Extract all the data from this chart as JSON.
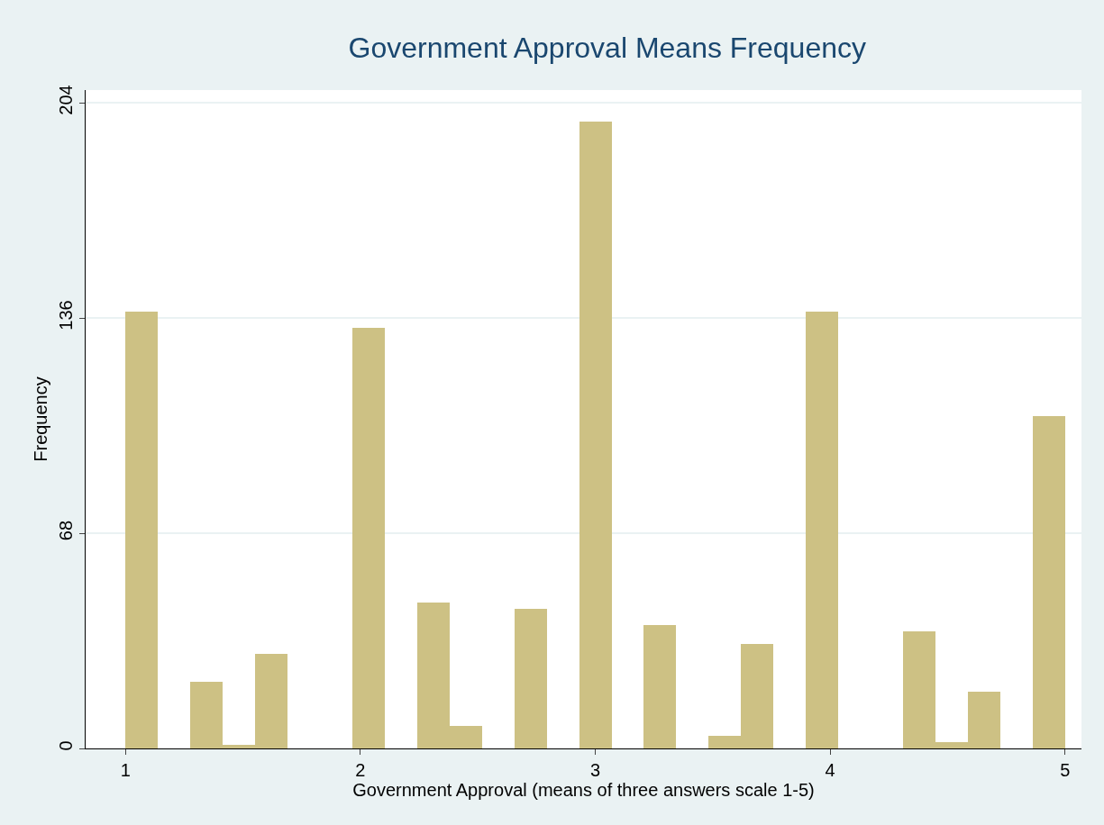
{
  "chart_data": {
    "type": "histogram",
    "title": "Government Approval Means Frequency",
    "xlabel": "Government Approval (means of three answers scale 1-5)",
    "ylabel": "Frequency",
    "bins": [
      1,
      1.138,
      1.276,
      1.414,
      1.552,
      1.69,
      1.828,
      1.966,
      2.103,
      2.241,
      2.379,
      2.517,
      2.655,
      2.793,
      2.931,
      3.069,
      3.207,
      3.345,
      3.483,
      3.621,
      3.759,
      3.897,
      4.034,
      4.172,
      4.31,
      4.448,
      4.586,
      4.724,
      4.862,
      5
    ],
    "values": [
      138,
      0,
      21,
      1,
      30,
      0,
      0,
      133,
      0,
      46,
      7,
      0,
      44,
      0,
      198,
      0,
      39,
      0,
      4,
      33,
      0,
      138,
      0,
      0,
      37,
      2,
      18,
      0,
      105
    ],
    "color": "#cdc184",
    "xlim": [
      0.83,
      5.07
    ],
    "ylim": [
      0,
      208
    ],
    "xticks": [
      1,
      2,
      3,
      4,
      5
    ],
    "yticks": [
      0,
      68,
      136,
      204
    ],
    "grid": "y"
  }
}
